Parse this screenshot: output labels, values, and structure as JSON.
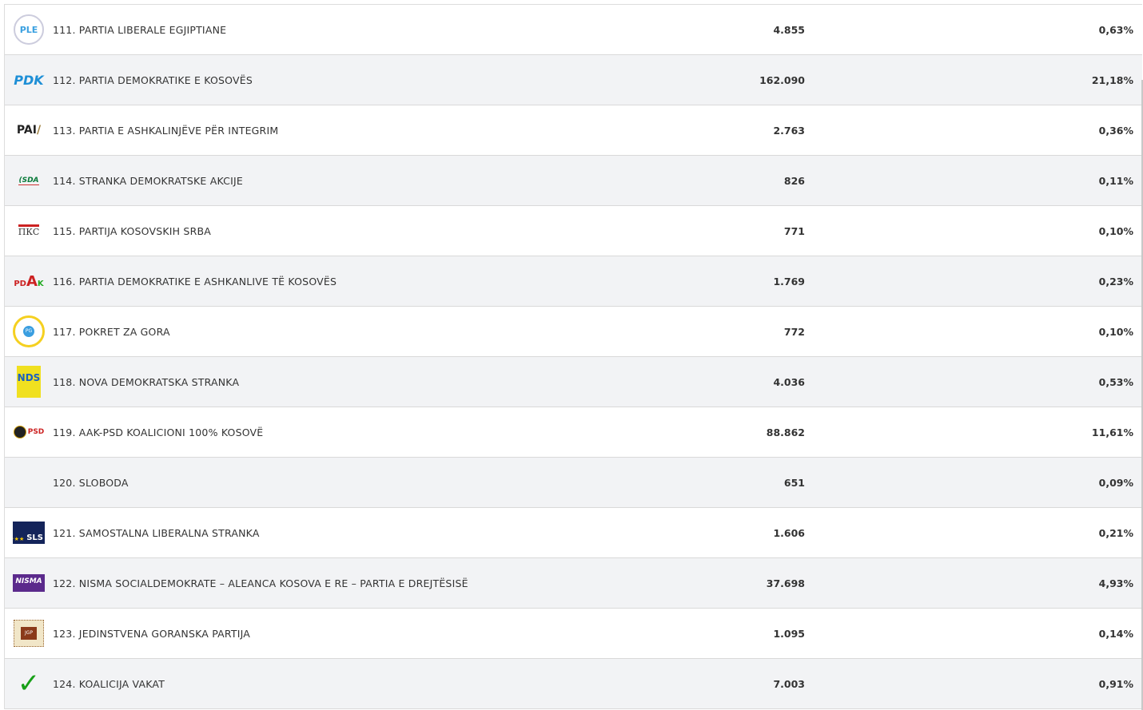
{
  "rows": [
    {
      "name": "111. PARTIA LIBERALE EGJIPTIANE",
      "votes": "4.855",
      "pct": "0,63%",
      "logo": "PLE"
    },
    {
      "name": "112. PARTIA DEMOKRATIKE E KOSOVËS",
      "votes": "162.090",
      "pct": "21,18%",
      "logo": "PDK"
    },
    {
      "name": "113. PARTIA E ASHKALINJËVE PËR INTEGRIM",
      "votes": "2.763",
      "pct": "0,36%",
      "logo": "PAI"
    },
    {
      "name": "114. STRANKA DEMOKRATSKE AKCIJE",
      "votes": "826",
      "pct": "0,11%",
      "logo": "SDA"
    },
    {
      "name": "115. PARTIJA KOSOVSKIH SRBA",
      "votes": "771",
      "pct": "0,10%",
      "logo": "ПКС"
    },
    {
      "name": "116. PARTIA DEMOKRATIKE E ASHKANLIVE TË KOSOVËS",
      "votes": "1.769",
      "pct": "0,23%",
      "logo": "PDAK"
    },
    {
      "name": "117. POKRET ZA GORA",
      "votes": "772",
      "pct": "0,10%",
      "logo": "PG"
    },
    {
      "name": "118. NOVA DEMOKRATSKA STRANKA",
      "votes": "4.036",
      "pct": "0,53%",
      "logo": "NDS"
    },
    {
      "name": "119. AAK-PSD KOALICIONI 100% KOSOVË",
      "votes": "88.862",
      "pct": "11,61%",
      "logo": "PSD"
    },
    {
      "name": "120. SLOBODA",
      "votes": "651",
      "pct": "0,09%",
      "logo": ""
    },
    {
      "name": "121. SAMOSTALNA LIBERALNA STRANKA",
      "votes": "1.606",
      "pct": "0,21%",
      "logo": "SLS"
    },
    {
      "name": "122. NISMA SOCIALDEMOKRATE – ALEANCA KOSOVA E RE – PARTIA E DREJTËSISË",
      "votes": "37.698",
      "pct": "4,93%",
      "logo": "NISMA"
    },
    {
      "name": "123. JEDINSTVENA GORANSKA PARTIJA",
      "votes": "1.095",
      "pct": "0,14%",
      "logo": "JGP"
    },
    {
      "name": "124. KOALICIJA VAKAT",
      "votes": "7.003",
      "pct": "0,91%",
      "logo": "✓"
    }
  ]
}
